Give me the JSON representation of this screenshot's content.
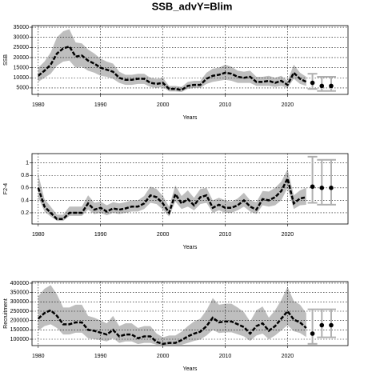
{
  "chart_data": [
    {
      "type": "line",
      "title": "SSB_advY=Blim",
      "ylabel": "SSB",
      "xlabel": "Years",
      "x": [
        1980,
        1981,
        1982,
        1983,
        1984,
        1985,
        1986,
        1987,
        1988,
        1989,
        1990,
        1991,
        1992,
        1993,
        1994,
        1995,
        1996,
        1997,
        1998,
        1999,
        2000,
        2001,
        2002,
        2003,
        2004,
        2005,
        2006,
        2007,
        2008,
        2009,
        2010,
        2011,
        2012,
        2013,
        2014,
        2015,
        2016,
        2017,
        2018,
        2019,
        2020,
        2021,
        2022,
        2023
      ],
      "values": [
        11000,
        13500,
        16500,
        22000,
        24500,
        25500,
        20500,
        21000,
        18500,
        17000,
        15000,
        14000,
        13000,
        10000,
        9000,
        9000,
        9500,
        9500,
        7500,
        7000,
        7500,
        4500,
        4500,
        4000,
        6000,
        6500,
        6500,
        9500,
        11000,
        11500,
        12500,
        12000,
        10500,
        10000,
        10500,
        8000,
        8000,
        8500,
        7500,
        8500,
        6500,
        12500,
        9500,
        8000
      ],
      "upper": [
        15000,
        18000,
        22500,
        30000,
        33000,
        34000,
        27500,
        27000,
        24000,
        22000,
        19500,
        18000,
        17000,
        13000,
        11500,
        11500,
        12000,
        12000,
        10000,
        9500,
        10000,
        6000,
        6000,
        5500,
        8000,
        8500,
        8500,
        12500,
        14500,
        15000,
        16500,
        15500,
        13500,
        13000,
        13500,
        10500,
        10500,
        11000,
        10000,
        11000,
        8500,
        16500,
        12500,
        10500
      ],
      "lower": [
        8000,
        10000,
        12000,
        16000,
        18000,
        18500,
        15000,
        15500,
        13500,
        12500,
        11000,
        10500,
        9500,
        7500,
        6500,
        6500,
        7000,
        7000,
        5500,
        5000,
        5500,
        3300,
        3300,
        3000,
        4500,
        5000,
        5000,
        7000,
        8000,
        8500,
        9000,
        8500,
        7500,
        7500,
        7500,
        6000,
        6000,
        6000,
        5500,
        6000,
        5000,
        9500,
        7000,
        6000
      ],
      "proj_x": [
        2024,
        2025.5,
        2027
      ],
      "proj_values": [
        7500,
        6000,
        6000
      ],
      "proj_lower": [
        4500,
        3500,
        3500
      ],
      "proj_upper": [
        12000,
        10500,
        10500
      ],
      "xlim": [
        1979,
        2029.7
      ],
      "xticks": [
        1980,
        1990,
        2000,
        2010,
        2020
      ],
      "ylim": [
        1800,
        35800
      ],
      "yticks": [
        5000,
        10000,
        15000,
        20000,
        25000,
        30000,
        35000
      ],
      "grid": true,
      "color": "#000000",
      "band_color": "#bebebe",
      "proj_color": "#b0b0b0"
    },
    {
      "type": "line",
      "ylabel": "F2-4",
      "xlabel": "Years",
      "x": [
        1980,
        1981,
        1982,
        1983,
        1984,
        1985,
        1986,
        1987,
        1988,
        1989,
        1990,
        1991,
        1992,
        1993,
        1994,
        1995,
        1996,
        1997,
        1998,
        1999,
        2000,
        2001,
        2002,
        2003,
        2004,
        2005,
        2006,
        2007,
        2008,
        2009,
        2010,
        2011,
        2012,
        2013,
        2014,
        2015,
        2016,
        2017,
        2018,
        2019,
        2020,
        2021,
        2022,
        2023
      ],
      "values": [
        0.6,
        0.3,
        0.2,
        0.1,
        0.1,
        0.2,
        0.2,
        0.2,
        0.35,
        0.25,
        0.28,
        0.22,
        0.27,
        0.25,
        0.27,
        0.3,
        0.3,
        0.35,
        0.48,
        0.45,
        0.35,
        0.2,
        0.5,
        0.35,
        0.42,
        0.32,
        0.45,
        0.48,
        0.28,
        0.33,
        0.28,
        0.28,
        0.32,
        0.4,
        0.3,
        0.25,
        0.42,
        0.4,
        0.45,
        0.55,
        0.75,
        0.35,
        0.43,
        0.45
      ],
      "upper": [
        0.82,
        0.42,
        0.3,
        0.17,
        0.17,
        0.3,
        0.3,
        0.3,
        0.48,
        0.36,
        0.38,
        0.32,
        0.37,
        0.35,
        0.37,
        0.4,
        0.4,
        0.47,
        0.62,
        0.58,
        0.47,
        0.3,
        0.64,
        0.47,
        0.56,
        0.44,
        0.58,
        0.6,
        0.4,
        0.44,
        0.4,
        0.38,
        0.43,
        0.52,
        0.4,
        0.37,
        0.55,
        0.54,
        0.6,
        0.7,
        0.9,
        0.48,
        0.56,
        0.6
      ],
      "lower": [
        0.45,
        0.22,
        0.14,
        0.07,
        0.07,
        0.15,
        0.15,
        0.15,
        0.25,
        0.18,
        0.2,
        0.16,
        0.2,
        0.18,
        0.2,
        0.22,
        0.22,
        0.26,
        0.36,
        0.34,
        0.25,
        0.14,
        0.38,
        0.26,
        0.3,
        0.24,
        0.34,
        0.36,
        0.2,
        0.24,
        0.2,
        0.2,
        0.24,
        0.3,
        0.22,
        0.18,
        0.32,
        0.3,
        0.32,
        0.4,
        0.6,
        0.26,
        0.32,
        0.33
      ],
      "proj_x": [
        2024,
        2025.5,
        2027
      ],
      "proj_values": [
        0.62,
        0.6,
        0.6
      ],
      "proj_lower": [
        0.36,
        0.33,
        0.33
      ],
      "proj_upper": [
        1.1,
        1.05,
        1.05
      ],
      "xlim": [
        1979,
        2029.7
      ],
      "xticks": [
        1980,
        1990,
        2000,
        2010,
        2020
      ],
      "ylim": [
        0.02,
        1.15
      ],
      "yticks": [
        0.2,
        0.4,
        0.6,
        0.8,
        1.0
      ],
      "grid": true,
      "color": "#000000",
      "band_color": "#bebebe",
      "proj_color": "#b0b0b0"
    },
    {
      "type": "line",
      "ylabel": "Recruitment",
      "xlabel": "Years",
      "x": [
        1980,
        1981,
        1982,
        1983,
        1984,
        1985,
        1986,
        1987,
        1988,
        1989,
        1990,
        1991,
        1992,
        1993,
        1994,
        1995,
        1996,
        1997,
        1998,
        1999,
        2000,
        2001,
        2002,
        2003,
        2004,
        2005,
        2006,
        2007,
        2008,
        2009,
        2010,
        2011,
        2012,
        2013,
        2014,
        2015,
        2016,
        2017,
        2018,
        2019,
        2020,
        2021,
        2022,
        2023
      ],
      "values": [
        210000,
        240000,
        255000,
        225000,
        180000,
        180000,
        190000,
        190000,
        150000,
        145000,
        135000,
        125000,
        150000,
        115000,
        125000,
        125000,
        105000,
        115000,
        115000,
        85000,
        75000,
        80000,
        80000,
        95000,
        115000,
        130000,
        140000,
        170000,
        215000,
        190000,
        195000,
        195000,
        180000,
        165000,
        130000,
        170000,
        185000,
        145000,
        170000,
        210000,
        250000,
        205000,
        190000,
        160000
      ],
      "upper": [
        330000,
        370000,
        390000,
        340000,
        270000,
        270000,
        285000,
        285000,
        225000,
        215000,
        200000,
        185000,
        225000,
        170000,
        185000,
        185000,
        160000,
        170000,
        170000,
        130000,
        110000,
        120000,
        120000,
        140000,
        170000,
        195000,
        210000,
        255000,
        320000,
        285000,
        290000,
        290000,
        270000,
        245000,
        195000,
        255000,
        275000,
        215000,
        255000,
        310000,
        380000,
        305000,
        285000,
        240000
      ],
      "lower": [
        145000,
        170000,
        180000,
        160000,
        125000,
        125000,
        135000,
        135000,
        105000,
        100000,
        95000,
        88000,
        105000,
        80000,
        88000,
        88000,
        74000,
        80000,
        80000,
        70000,
        70000,
        70000,
        70000,
        70000,
        80000,
        91000,
        98000,
        120000,
        150000,
        133000,
        137000,
        137000,
        126000,
        115000,
        91000,
        120000,
        130000,
        100000,
        120000,
        147000,
        175000,
        143000,
        133000,
        112000
      ],
      "proj_x": [
        2024,
        2025.5,
        2027
      ],
      "proj_values": [
        130000,
        175000,
        175000
      ],
      "proj_lower": [
        75000,
        110000,
        110000
      ],
      "proj_upper": [
        260000,
        260000,
        260000
      ],
      "xlim": [
        1979,
        2029.7
      ],
      "xticks": [
        1980,
        1990,
        2000,
        2010,
        2020
      ],
      "ylim": [
        65700,
        408500
      ],
      "yticks": [
        100000,
        150000,
        200000,
        250000,
        300000,
        350000,
        400000
      ],
      "grid": true,
      "color": "#000000",
      "band_color": "#bebebe",
      "proj_color": "#b0b0b0"
    }
  ]
}
